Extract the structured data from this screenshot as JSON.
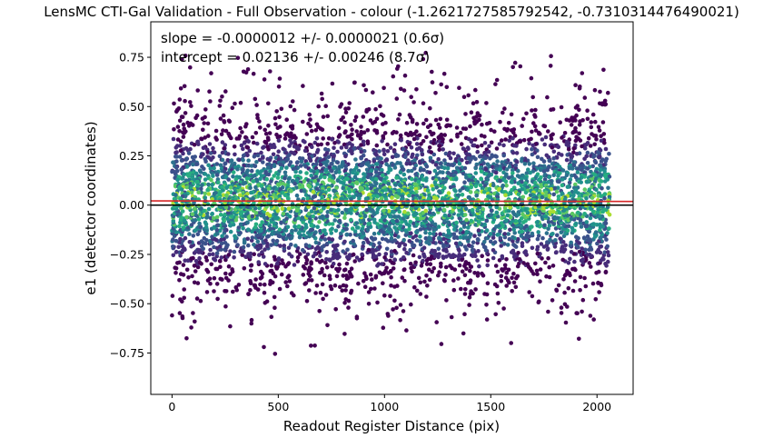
{
  "chart_data": {
    "type": "scatter",
    "title": "LensMC CTI-Gal Validation - Full Observation - colour (-1.2621727585792542, -0.7310314476490021)",
    "xlabel": "Readout Register Distance (pix)",
    "ylabel": "e1 (detector coordinates)",
    "xlim": [
      -100,
      2170
    ],
    "ylim": [
      -0.96,
      0.93
    ],
    "x_ticks": [
      0,
      500,
      1000,
      1500,
      2000
    ],
    "x_tick_labels": [
      "0",
      "500",
      "1000",
      "1500",
      "2000"
    ],
    "y_ticks": [
      -0.75,
      -0.5,
      -0.25,
      0.0,
      0.25,
      0.5,
      0.75
    ],
    "y_tick_labels": [
      "−0.75",
      "−0.50",
      "−0.25",
      "0.00",
      "0.25",
      "0.50",
      "0.75"
    ],
    "grid": false,
    "annotations": [
      "slope = -0.0000012 +/- 0.0000021 (0.6σ)",
      "intercept = 0.02136 +/- 0.00246 (8.7σ)"
    ],
    "points": {
      "x_range": [
        0,
        2060
      ],
      "y_center": 0.02,
      "y_spread": 0.22,
      "y_extent": [
        -0.88,
        0.82
      ],
      "color_scale": "viridis, colored by local point density"
    },
    "fit_line": {
      "slope": -1.2e-06,
      "intercept": 0.02136,
      "color": "#d62728"
    },
    "zero_line": {
      "y": 0.0,
      "color": "#000000"
    }
  }
}
